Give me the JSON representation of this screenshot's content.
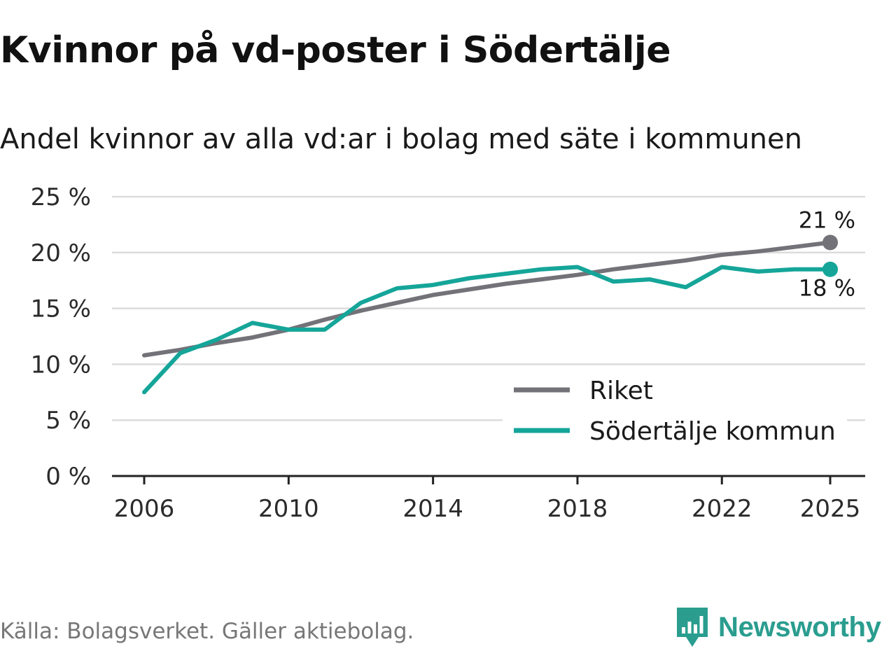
{
  "title": "Kvinnor på vd-poster i Södertälje",
  "subtitle": "Andel kvinnor av alla vd:ar i bolag med säte i kommunen",
  "source": "Källa: Bolagsverket. Gäller aktiebolag.",
  "brand": "Newsworthy",
  "colors": {
    "riket": "#737278",
    "sodertalje": "#15a599",
    "grid": "#dcdcdc",
    "axis": "#222222",
    "brand": "#2a9d8f"
  },
  "chart_data": {
    "type": "line",
    "title": "Kvinnor på vd-poster i Södertälje",
    "xlabel": "",
    "ylabel": "",
    "x": [
      2006,
      2007,
      2008,
      2009,
      2010,
      2011,
      2012,
      2013,
      2014,
      2015,
      2016,
      2017,
      2018,
      2019,
      2020,
      2021,
      2022,
      2023,
      2024,
      2025
    ],
    "xlim": [
      2006,
      2025
    ],
    "ylim": [
      0,
      25
    ],
    "x_ticks": [
      2006,
      2010,
      2014,
      2018,
      2022,
      2025
    ],
    "x_tick_labels": [
      "2006",
      "2010",
      "2014",
      "2018",
      "2022",
      "2025"
    ],
    "y_ticks": [
      0,
      5,
      10,
      15,
      20,
      25
    ],
    "y_tick_labels": [
      "0 %",
      "5 %",
      "10 %",
      "15 %",
      "20 %",
      "25 %"
    ],
    "grid": true,
    "legend_position": "bottom-right",
    "series": [
      {
        "name": "Riket",
        "color_key": "riket",
        "values": [
          10.8,
          11.3,
          11.9,
          12.4,
          13.1,
          14.0,
          14.8,
          15.5,
          16.2,
          16.7,
          17.2,
          17.6,
          18.0,
          18.5,
          18.9,
          19.3,
          19.8,
          20.1,
          20.5,
          20.9
        ],
        "end_label": "21 %"
      },
      {
        "name": "Södertälje kommun",
        "color_key": "sodertalje",
        "values": [
          7.5,
          11.0,
          12.2,
          13.7,
          13.1,
          13.1,
          15.5,
          16.8,
          17.1,
          17.7,
          18.1,
          18.5,
          18.7,
          17.4,
          17.6,
          16.9,
          18.7,
          18.3,
          18.5,
          18.5
        ],
        "end_label": "18 %"
      }
    ]
  }
}
